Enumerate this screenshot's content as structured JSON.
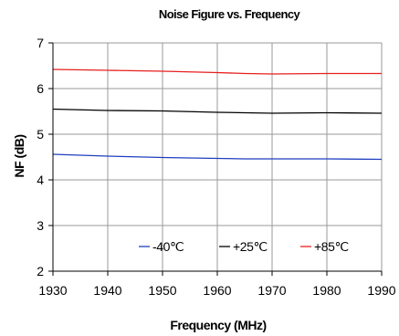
{
  "chart_data": {
    "type": "line",
    "title": "Noise Figure vs. Frequency",
    "xlabel": "Frequency (MHz)",
    "ylabel": "NF (dB)",
    "xlim": [
      1930,
      1990
    ],
    "ylim": [
      2,
      7
    ],
    "xticks": [
      1930,
      1940,
      1950,
      1960,
      1970,
      1980,
      1990
    ],
    "yticks": [
      2,
      3,
      4,
      5,
      6,
      7
    ],
    "grid": true,
    "legend_position": "bottom-center",
    "x": [
      1930,
      1940,
      1950,
      1960,
      1965,
      1970,
      1980,
      1990
    ],
    "series": [
      {
        "name": "-40℃",
        "color": "#1f3fbf",
        "values": [
          4.56,
          4.52,
          4.49,
          4.47,
          4.46,
          4.46,
          4.46,
          4.45
        ]
      },
      {
        "name": "+25℃",
        "color": "#000000",
        "values": [
          5.55,
          5.52,
          5.51,
          5.48,
          5.47,
          5.46,
          5.47,
          5.46
        ]
      },
      {
        "name": "+85℃",
        "color": "#e81e1e",
        "values": [
          6.42,
          6.4,
          6.38,
          6.35,
          6.33,
          6.32,
          6.33,
          6.33
        ]
      }
    ]
  }
}
